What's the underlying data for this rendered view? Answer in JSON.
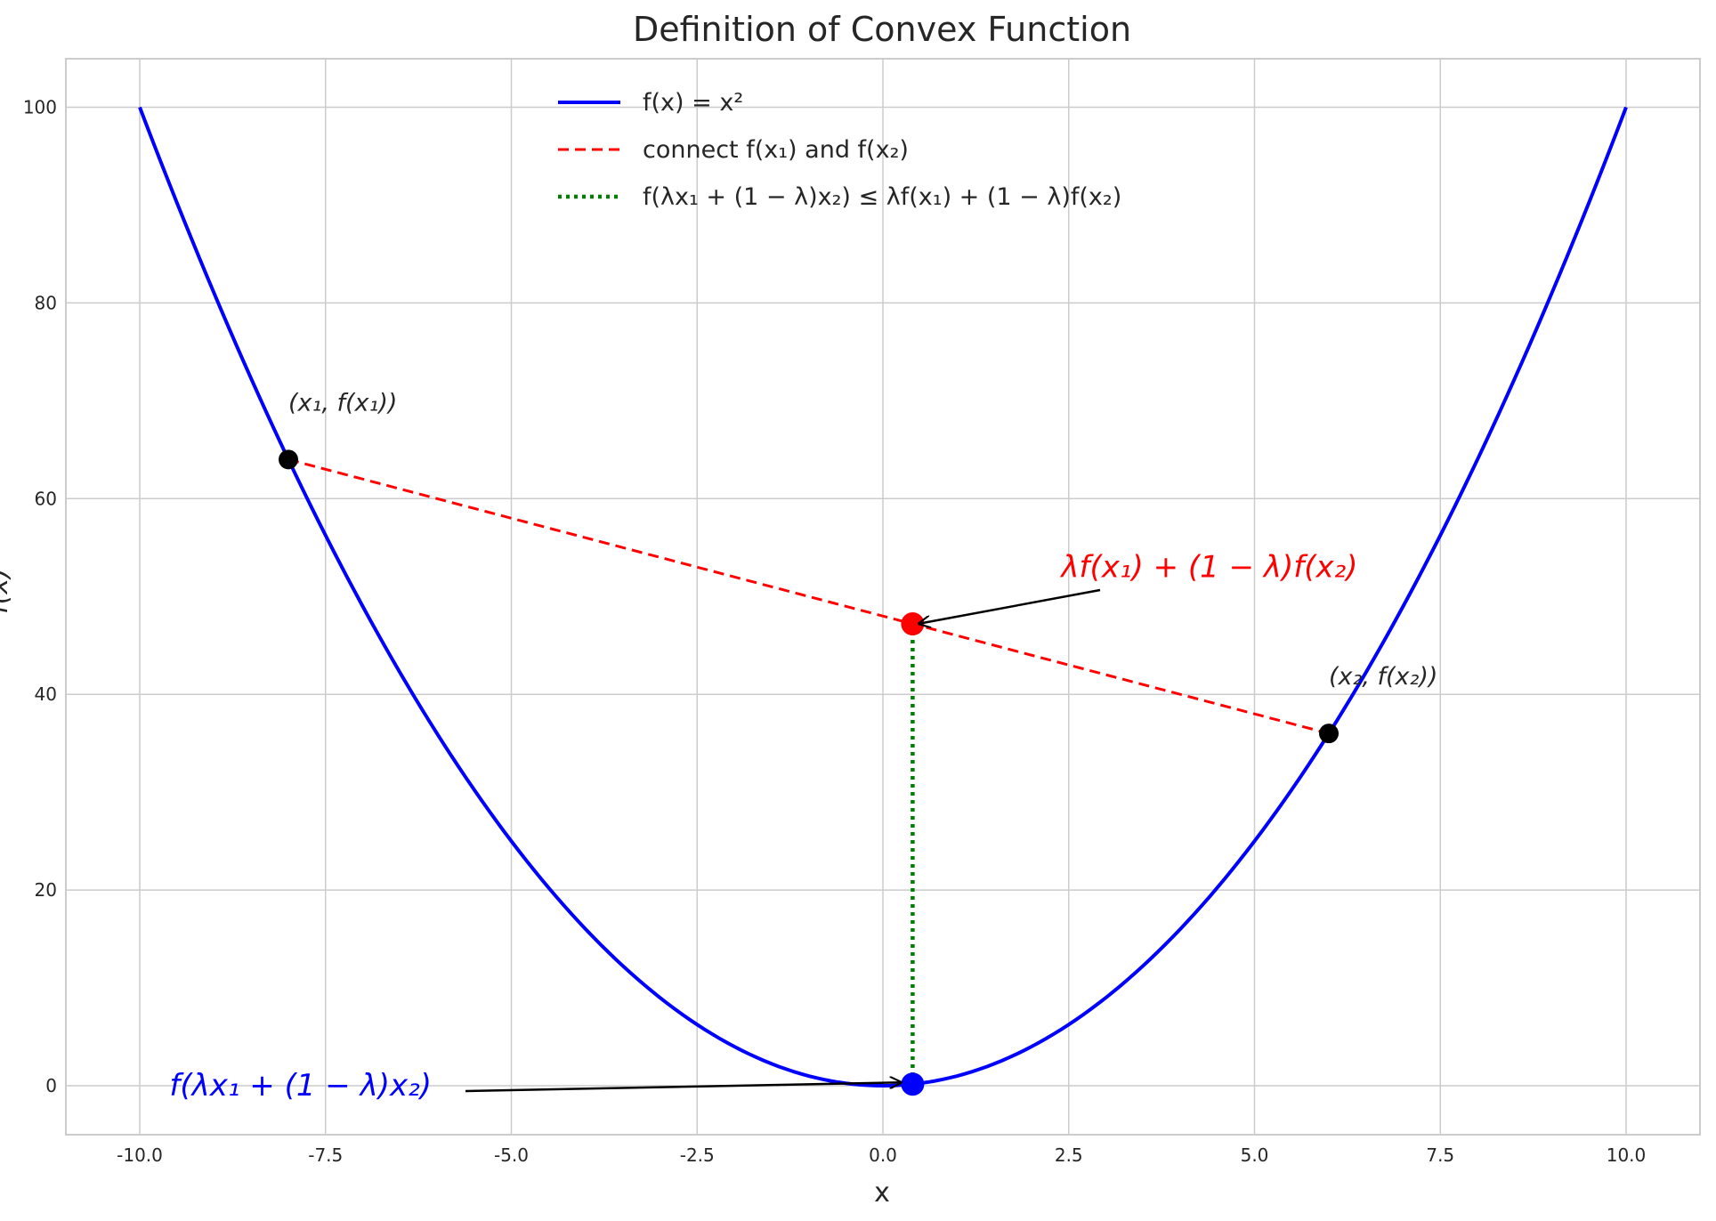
{
  "chart_data": {
    "type": "line",
    "title": "Definition of Convex Function",
    "xlabel": "x",
    "ylabel": "f(x)",
    "xlim": [
      -11,
      11
    ],
    "ylim": [
      -5,
      105
    ],
    "grid": true,
    "legend_placement": "upper-center",
    "x_ticks": [
      -10,
      -7.5,
      -5,
      -2.5,
      0,
      2.5,
      5,
      7.5,
      10
    ],
    "x_tick_labels": [
      "-10.0",
      "-7.5",
      "-5.0",
      "-2.5",
      "0.0",
      "2.5",
      "5.0",
      "7.5",
      "10.0"
    ],
    "y_ticks": [
      0,
      20,
      40,
      60,
      80,
      100
    ],
    "y_tick_labels": [
      "0",
      "20",
      "40",
      "60",
      "80",
      "100"
    ],
    "series": [
      {
        "name": "f(x) = x²",
        "kind": "curve",
        "function": "x^2",
        "x_range": [
          -10,
          10
        ],
        "color": "#0000ff",
        "style": "solid"
      },
      {
        "name": "connect f(x₁) and f(x₂)",
        "kind": "segment",
        "points": [
          [
            -8,
            64
          ],
          [
            6,
            36
          ]
        ],
        "color": "#ff0000",
        "style": "dashed"
      },
      {
        "name": "f(λx₁ + (1 − λ)x₂) ≤ λf(x₁) + (1 − λ)f(x₂)",
        "kind": "segment",
        "points": [
          [
            0.4,
            47.2
          ],
          [
            0.4,
            0.16
          ]
        ],
        "color": "#008000",
        "style": "dotted"
      }
    ],
    "markers": [
      {
        "x": -8,
        "y": 64,
        "color": "#000000"
      },
      {
        "x": 6,
        "y": 36,
        "color": "#000000"
      },
      {
        "x": 0.4,
        "y": 47.2,
        "color": "#ff0000"
      },
      {
        "x": 0.4,
        "y": 0.16,
        "color": "#0000ff"
      }
    ],
    "annotations": [
      {
        "text": "(x₁, f(x₁))",
        "x": -8,
        "y": 69,
        "color": "#262626"
      },
      {
        "text": "(x₂, f(x₂))",
        "x": 6,
        "y": 41,
        "color": "#262626"
      },
      {
        "text": "λf(x₁) + (1 − λ)f(x₂)",
        "x": 2.4,
        "y": 52,
        "color": "#ff0000",
        "arrow_to": [
          0.4,
          47.2
        ]
      },
      {
        "text": "f(λx₁ + (1 − λ)x₂)",
        "x": -9.6,
        "y": -1,
        "color": "#0000ff",
        "arrow_to": [
          0.4,
          0.16
        ]
      }
    ]
  }
}
